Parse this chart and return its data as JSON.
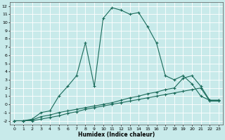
{
  "xlabel": "Humidex (Indice chaleur)",
  "xlim": [
    -0.5,
    23.5
  ],
  "ylim": [
    -2.5,
    12.5
  ],
  "xticks": [
    0,
    1,
    2,
    3,
    4,
    5,
    6,
    7,
    8,
    9,
    10,
    11,
    12,
    13,
    14,
    15,
    16,
    17,
    18,
    19,
    20,
    21,
    22,
    23
  ],
  "yticks": [
    -2,
    -1,
    0,
    1,
    2,
    3,
    4,
    5,
    6,
    7,
    8,
    9,
    10,
    11,
    12
  ],
  "line_color": "#1a6b5a",
  "bg_color": "#c8eaea",
  "grid_color": "#ffffff",
  "line1_x": [
    0,
    1,
    2,
    3,
    4,
    5,
    6,
    7,
    8,
    9,
    10,
    11,
    12,
    13,
    14,
    15,
    16,
    17,
    18,
    19,
    20,
    21,
    22,
    23
  ],
  "line1_y": [
    -2,
    -2,
    -1.8,
    -1.0,
    -0.8,
    1.0,
    2.2,
    3.5,
    7.5,
    2.2,
    10.5,
    11.8,
    11.5,
    11.0,
    11.2,
    9.5,
    7.5,
    3.5,
    3.0,
    3.5,
    2.5,
    1.0,
    0.5,
    0.5
  ],
  "line2_x": [
    0,
    1,
    2,
    3,
    4,
    5,
    6,
    7,
    8,
    9,
    10,
    11,
    12,
    13,
    14,
    15,
    16,
    17,
    18,
    19,
    20,
    21,
    22,
    23
  ],
  "line2_y": [
    -2.0,
    -2.0,
    -1.9,
    -1.5,
    -1.3,
    -1.0,
    -0.8,
    -0.6,
    -0.4,
    -0.2,
    0.0,
    0.2,
    0.5,
    0.8,
    1.0,
    1.3,
    1.5,
    1.8,
    2.0,
    3.2,
    3.5,
    2.2,
    0.5,
    0.5
  ],
  "line3_x": [
    0,
    1,
    2,
    3,
    4,
    5,
    6,
    7,
    8,
    9,
    10,
    11,
    12,
    13,
    14,
    15,
    16,
    17,
    18,
    19,
    20,
    21,
    22,
    23
  ],
  "line3_y": [
    -2.0,
    -2.0,
    -2.0,
    -1.8,
    -1.6,
    -1.4,
    -1.1,
    -0.9,
    -0.6,
    -0.4,
    -0.2,
    0.0,
    0.2,
    0.4,
    0.6,
    0.8,
    1.0,
    1.2,
    1.4,
    1.6,
    1.8,
    2.0,
    0.4,
    0.4
  ]
}
